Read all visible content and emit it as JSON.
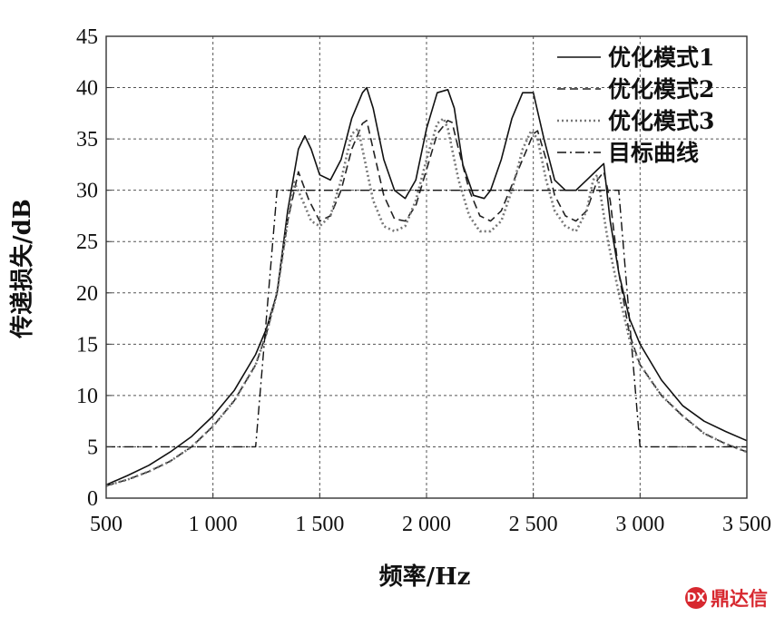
{
  "chart_data": {
    "type": "line",
    "title": "",
    "xlabel": "频率/Hz",
    "ylabel": "传递损失/dB",
    "xlim": [
      500,
      3500
    ],
    "ylim": [
      0,
      45
    ],
    "xticks": [
      500,
      1000,
      1500,
      2000,
      2500,
      3000,
      3500
    ],
    "xtick_labels": [
      "500",
      "1 000",
      "1 500",
      "2 000",
      "2 500",
      "3 000",
      "3 500"
    ],
    "yticks": [
      0,
      5,
      10,
      15,
      20,
      25,
      30,
      35,
      40,
      45
    ],
    "ytick_labels": [
      "0",
      "5",
      "10",
      "15",
      "20",
      "25",
      "30",
      "35",
      "40",
      "45"
    ],
    "grid": true,
    "legend_position": "top-right",
    "series": [
      {
        "name": "优化模式1",
        "style": "solid",
        "color": "#111111",
        "x": [
          500,
          600,
          700,
          800,
          900,
          1000,
          1100,
          1200,
          1250,
          1300,
          1350,
          1400,
          1430,
          1460,
          1500,
          1550,
          1600,
          1650,
          1700,
          1720,
          1750,
          1800,
          1850,
          1900,
          1950,
          2000,
          2050,
          2100,
          2130,
          2170,
          2220,
          2270,
          2300,
          2350,
          2400,
          2450,
          2500,
          2550,
          2600,
          2650,
          2700,
          2750,
          2800,
          2830,
          2860,
          2900,
          2950,
          3000,
          3100,
          3200,
          3300,
          3400,
          3500
        ],
        "y": [
          1.3,
          2.2,
          3.2,
          4.5,
          6,
          8,
          10.5,
          14,
          16.5,
          20,
          28,
          34,
          35.3,
          34,
          31.5,
          31,
          33,
          37,
          39.5,
          40,
          38,
          33,
          30,
          29.2,
          31,
          36,
          39.5,
          39.8,
          38,
          32.5,
          29.5,
          29.2,
          30,
          33,
          37,
          39.5,
          39.5,
          35,
          31,
          30,
          30,
          31,
          32,
          32.6,
          27,
          22,
          17.5,
          15,
          11.5,
          9,
          7.5,
          6.5,
          5.6
        ]
      },
      {
        "name": "优化模式2",
        "style": "dashed",
        "color": "#222222",
        "x": [
          500,
          600,
          700,
          800,
          900,
          1000,
          1100,
          1200,
          1250,
          1300,
          1350,
          1400,
          1450,
          1500,
          1550,
          1600,
          1650,
          1700,
          1720,
          1750,
          1800,
          1850,
          1900,
          1950,
          2000,
          2050,
          2100,
          2120,
          2150,
          2200,
          2250,
          2300,
          2350,
          2400,
          2450,
          2500,
          2520,
          2560,
          2600,
          2650,
          2700,
          2750,
          2800,
          2830,
          2860,
          2900,
          2950,
          3000,
          3100,
          3200,
          3300,
          3400,
          3500
        ],
        "y": [
          1.2,
          1.8,
          2.6,
          3.6,
          5,
          7,
          9.5,
          13,
          16,
          20,
          27,
          31.8,
          29,
          27,
          27.5,
          30,
          34,
          36.5,
          36.8,
          34,
          29.5,
          27.2,
          27,
          28.5,
          32,
          35.5,
          36.8,
          36.6,
          34,
          30,
          27.5,
          27,
          28,
          30.5,
          33,
          35.5,
          35.8,
          33,
          29.5,
          27.5,
          27,
          28,
          31,
          31.8,
          29,
          22,
          16,
          13,
          10,
          8,
          6.3,
          5.3,
          4.5
        ]
      },
      {
        "name": "优化模式3",
        "style": "dotted",
        "color": "#777777",
        "x": [
          500,
          600,
          700,
          800,
          900,
          1000,
          1100,
          1200,
          1250,
          1300,
          1350,
          1380,
          1420,
          1460,
          1500,
          1550,
          1600,
          1650,
          1680,
          1700,
          1750,
          1800,
          1850,
          1900,
          1950,
          2000,
          2050,
          2080,
          2100,
          2150,
          2200,
          2250,
          2300,
          2350,
          2400,
          2450,
          2490,
          2520,
          2560,
          2600,
          2650,
          2700,
          2750,
          2780,
          2800,
          2850,
          2900,
          2950,
          3000,
          3100,
          3200,
          3300,
          3400,
          3500
        ],
        "y": [
          1.2,
          1.8,
          2.6,
          3.6,
          5,
          7,
          9.5,
          13,
          16,
          20,
          27,
          30.8,
          29,
          27,
          26.5,
          27.5,
          31,
          35.5,
          36,
          34,
          29,
          26.5,
          26,
          26.5,
          29,
          33,
          36.5,
          37,
          36,
          31,
          27.5,
          26,
          26,
          27,
          30,
          34,
          35.8,
          35,
          31,
          28,
          26.5,
          26,
          28,
          31,
          31.5,
          25,
          20,
          15.5,
          13,
          10,
          8,
          6.3,
          5.3,
          4.5
        ]
      },
      {
        "name": "目标曲线",
        "style": "dashdot",
        "color": "#111111",
        "x": [
          500,
          1200,
          1300,
          2900,
          3000,
          3500
        ],
        "y": [
          5,
          5,
          30,
          30,
          5,
          5
        ]
      }
    ]
  },
  "watermark": {
    "text": "鼎达信",
    "icon_text": "DX",
    "color": "#d7282f"
  }
}
